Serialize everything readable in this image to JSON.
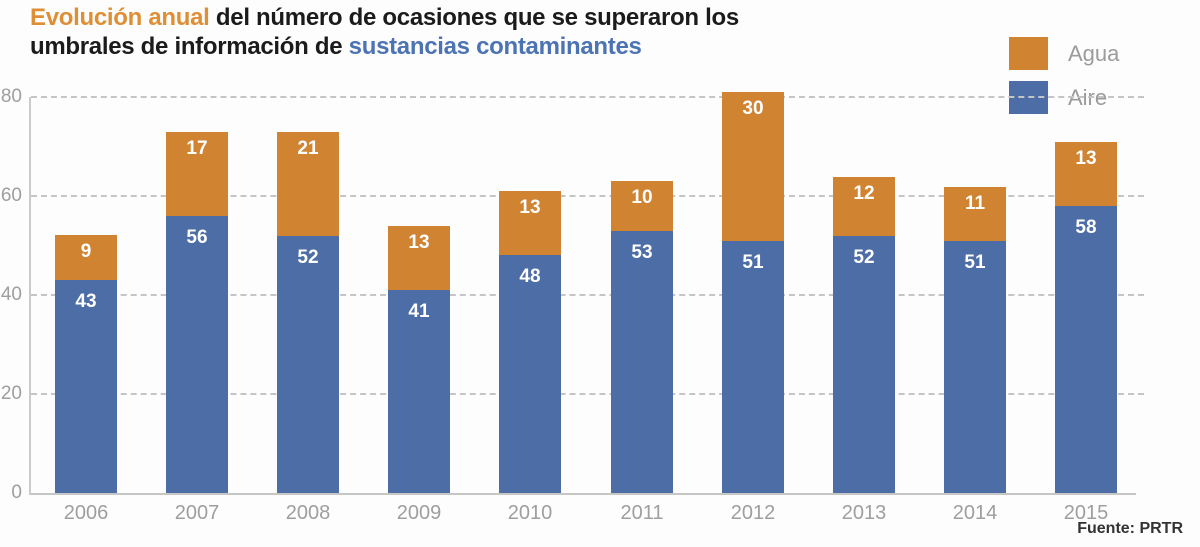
{
  "title": {
    "highlight_orange": "Evolución anual",
    "line1_rest": " del número de ocasiones que se superaron los",
    "line2_start": "umbrales de información de ",
    "highlight_blue": "sustancias contaminantes"
  },
  "legend": {
    "items": [
      {
        "label": "Agua",
        "series": "agua"
      },
      {
        "label": "Aire",
        "series": "aire"
      }
    ]
  },
  "source": "Fuente: PRTR",
  "colors": {
    "bar_agua": "#D08432",
    "bar_aire": "#4C6DA6",
    "title_orange": "#DE8F35",
    "title_blue": "#4C73B2",
    "axis_text": "#9E9E9E",
    "grid": "#C5C5C5",
    "value_label": "#FFFFFF"
  },
  "chart_data": {
    "type": "bar",
    "stacked": true,
    "title": "Evolución anual del número de ocasiones que se superaron los umbrales de información de sustancias contaminantes",
    "xlabel": "",
    "ylabel": "",
    "categories": [
      "2006",
      "2007",
      "2008",
      "2009",
      "2010",
      "2011",
      "2012",
      "2013",
      "2014",
      "2015"
    ],
    "series": [
      {
        "name": "Aire",
        "key": "aire",
        "color": "#4C6DA6",
        "values": [
          43,
          56,
          52,
          41,
          48,
          53,
          51,
          52,
          51,
          58
        ]
      },
      {
        "name": "Agua",
        "key": "agua",
        "color": "#D08432",
        "values": [
          9,
          17,
          21,
          13,
          13,
          10,
          30,
          12,
          11,
          13
        ]
      }
    ],
    "totals": [
      52,
      73,
      73,
      54,
      61,
      63,
      81,
      64,
      62,
      71
    ],
    "ylim": [
      0,
      80
    ],
    "yticks": [
      0,
      20,
      40,
      60,
      80
    ],
    "grid": "horizontal-dashed",
    "legend_position": "top-right",
    "source": "Fuente: PRTR"
  }
}
